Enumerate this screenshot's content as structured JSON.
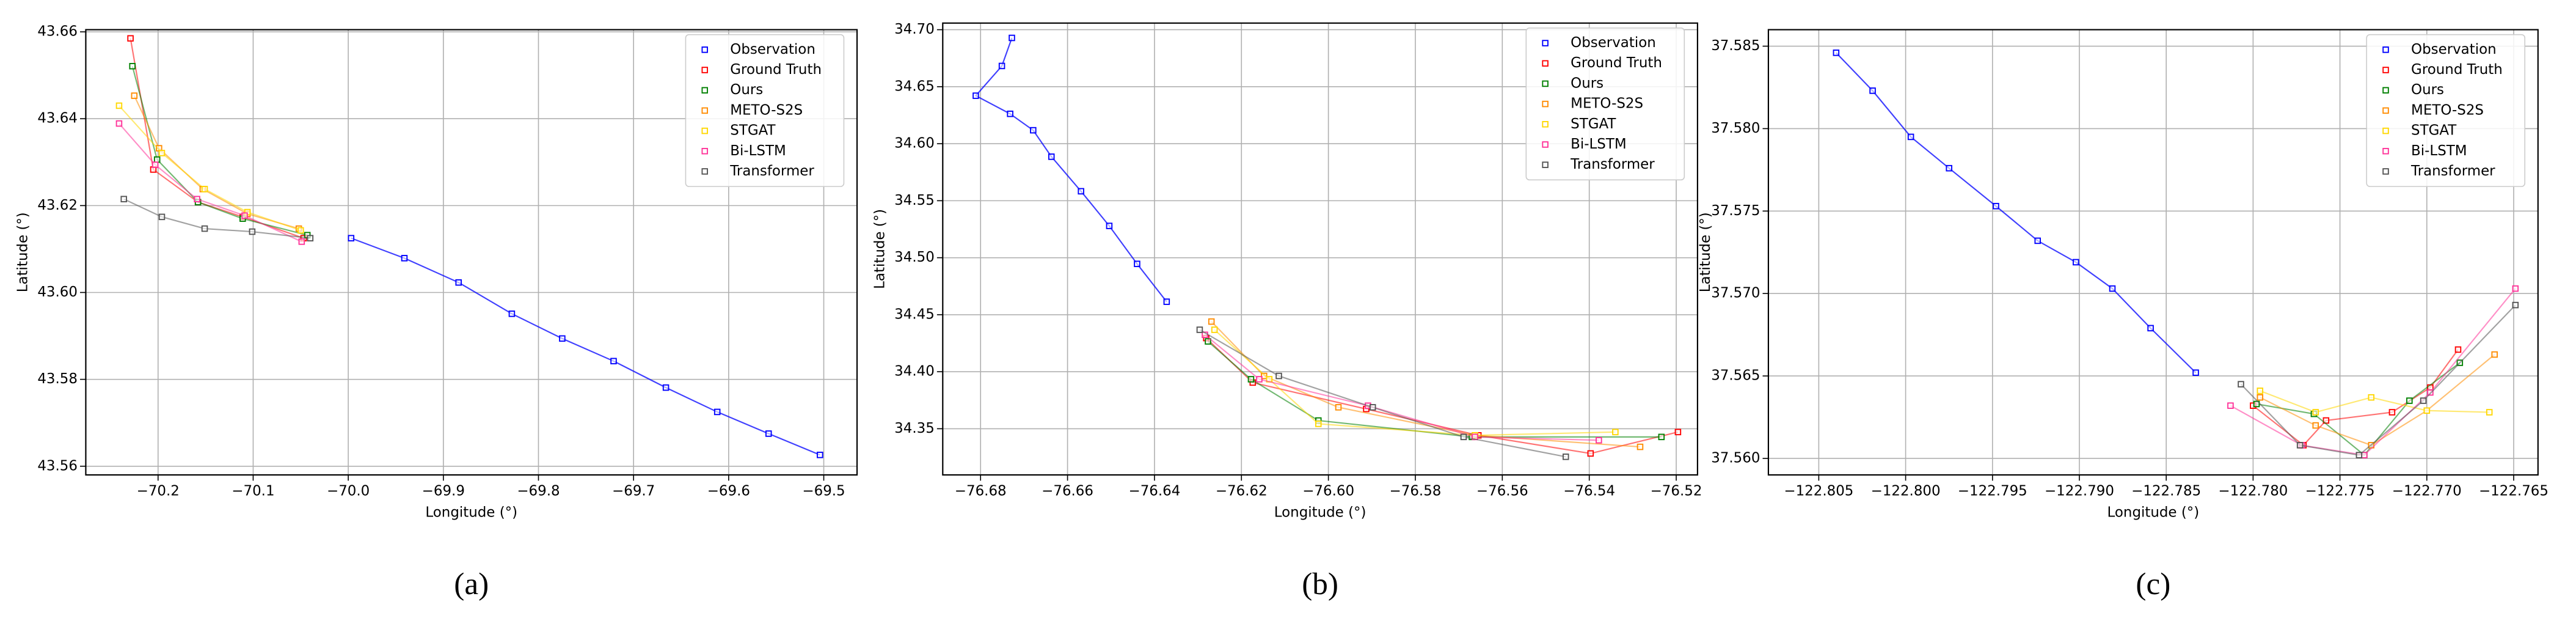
{
  "chart_data": [
    {
      "type": "line",
      "caption": "(a)",
      "xlabel": "Longitude (°)",
      "ylabel": "Latitude (°)",
      "grid": true,
      "legend": "upper right",
      "xlim": [
        -70.276,
        -69.465
      ],
      "ylim": [
        43.558,
        43.6605
      ],
      "xticks": [
        {
          "value": -70.2,
          "label": "−70.2"
        },
        {
          "value": -70.1,
          "label": "−70.1"
        },
        {
          "value": -70.0,
          "label": "−70.0"
        },
        {
          "value": -69.9,
          "label": "−69.9"
        },
        {
          "value": -69.8,
          "label": "−69.8"
        },
        {
          "value": -69.7,
          "label": "−69.7"
        },
        {
          "value": -69.6,
          "label": "−69.6"
        },
        {
          "value": -69.5,
          "label": "−69.5"
        }
      ],
      "yticks": [
        43.56,
        43.58,
        {
          "value": 43.6,
          "label": "43.60"
        },
        43.62,
        43.64,
        43.66
      ],
      "series": [
        {
          "name": "Observation",
          "color": "#0000ff",
          "x": [
            -69.997,
            -69.941,
            -69.884,
            -69.828,
            -69.775,
            -69.721,
            -69.666,
            -69.612,
            -69.558,
            -69.504
          ],
          "values": [
            43.6125,
            43.6079,
            43.6023,
            43.5951,
            43.5894,
            43.5842,
            43.5781,
            43.5725,
            43.5675,
            43.5626
          ]
        },
        {
          "name": "Ground Truth",
          "color": "#ff0000",
          "x": [
            -70.229,
            -70.205,
            -70.158,
            -70.111,
            -70.047
          ],
          "values": [
            43.6585,
            43.6283,
            43.6208,
            43.6174,
            43.6125
          ]
        },
        {
          "name": "Ours",
          "color": "#008000",
          "x": [
            -70.227,
            -70.201,
            -70.158,
            -70.111,
            -70.043
          ],
          "values": [
            43.6521,
            43.6306,
            43.6208,
            43.617,
            43.6132
          ]
        },
        {
          "name": "METO-S2S",
          "color": "#ff8c00",
          "x": [
            -70.225,
            -70.199,
            -70.153,
            -70.106,
            -70.052
          ],
          "values": [
            43.6453,
            43.6332,
            43.6238,
            43.6181,
            43.6147
          ]
        },
        {
          "name": "STGAT",
          "color": "#ffd700",
          "x": [
            -70.241,
            -70.196,
            -70.151,
            -70.106,
            -70.05
          ],
          "values": [
            43.643,
            43.6321,
            43.6238,
            43.6185,
            43.6143
          ]
        },
        {
          "name": "Bi-LSTM",
          "color": "#ff3399",
          "x": [
            -70.241,
            -70.203,
            -70.159,
            -70.109,
            -70.049
          ],
          "values": [
            43.6389,
            43.6294,
            43.6215,
            43.6177,
            43.6117
          ]
        },
        {
          "name": "Transformer",
          "color": "#555555",
          "x": [
            -70.236,
            -70.196,
            -70.151,
            -70.101,
            -70.04
          ],
          "values": [
            43.6215,
            43.6174,
            43.6147,
            43.614,
            43.6125
          ]
        }
      ]
    },
    {
      "type": "line",
      "caption": "(b)",
      "xlabel": "Longitude (°)",
      "ylabel": "Latitude (°)",
      "grid": true,
      "legend": "upper right",
      "xlim": [
        -76.6887,
        -76.5151
      ],
      "ylim": [
        34.3095,
        34.7058
      ],
      "xticks": [
        {
          "value": -76.68,
          "label": "−76.68"
        },
        {
          "value": -76.66,
          "label": "−76.66"
        },
        {
          "value": -76.64,
          "label": "−76.64"
        },
        {
          "value": -76.62,
          "label": "−76.62"
        },
        {
          "value": -76.6,
          "label": "−76.60"
        },
        {
          "value": -76.58,
          "label": "−76.58"
        },
        {
          "value": -76.56,
          "label": "−76.56"
        },
        {
          "value": -76.54,
          "label": "−76.54"
        },
        {
          "value": -76.52,
          "label": "−76.52"
        }
      ],
      "yticks": [
        34.35,
        {
          "value": 34.4,
          "label": "34.40"
        },
        34.45,
        {
          "value": 34.5,
          "label": "34.50"
        },
        34.55,
        {
          "value": 34.6,
          "label": "34.60"
        },
        34.65,
        {
          "value": 34.7,
          "label": "34.70"
        }
      ],
      "series": [
        {
          "name": "Observation",
          "color": "#0000ff",
          "x": [
            -76.6728,
            -76.6751,
            -76.6811,
            -76.6732,
            -76.6679,
            -76.6637,
            -76.6569,
            -76.6504,
            -76.644,
            -76.6372
          ],
          "values": [
            34.6928,
            34.6682,
            34.6421,
            34.6262,
            34.6118,
            34.5886,
            34.5583,
            34.5279,
            34.4946,
            34.4614
          ]
        },
        {
          "name": "Ground Truth",
          "color": "#ff0000",
          "x": [
            -76.6281,
            -76.6174,
            -76.5913,
            -76.5655,
            -76.5397,
            -76.5196
          ],
          "values": [
            34.4295,
            34.3905,
            34.3673,
            34.3442,
            34.3283,
            34.3471
          ]
        },
        {
          "name": "Ours",
          "color": "#008000",
          "x": [
            -76.6277,
            -76.6178,
            -76.6023,
            -76.567,
            -76.5234
          ],
          "values": [
            34.4266,
            34.3934,
            34.3572,
            34.3428,
            34.3428
          ]
        },
        {
          "name": "METO-S2S",
          "color": "#ff8c00",
          "x": [
            -76.6269,
            -76.6148,
            -76.5977,
            -76.5663,
            -76.5283
          ],
          "values": [
            34.444,
            34.3963,
            34.3688,
            34.3442,
            34.3341
          ]
        },
        {
          "name": "STGAT",
          "color": "#ffd700",
          "x": [
            -76.6262,
            -76.6136,
            -76.6023,
            -76.5663,
            -76.534
          ],
          "values": [
            34.4368,
            34.3934,
            34.3543,
            34.3442,
            34.3471
          ]
        },
        {
          "name": "Bi-LSTM",
          "color": "#ff3399",
          "x": [
            -76.6284,
            -76.6159,
            -76.5909,
            -76.5663,
            -76.5378
          ],
          "values": [
            34.4324,
            34.3934,
            34.3702,
            34.3428,
            34.3399
          ]
        },
        {
          "name": "Transformer",
          "color": "#555555",
          "x": [
            -76.6296,
            -76.6114,
            -76.5898,
            -76.5689,
            -76.5454
          ],
          "values": [
            34.4368,
            34.3963,
            34.3688,
            34.3428,
            34.3254
          ]
        }
      ]
    },
    {
      "type": "line",
      "caption": "(c)",
      "xlabel": "Longitude (°)",
      "ylabel": "Latitude (°)",
      "grid": true,
      "legend": "upper right",
      "xlim": [
        -122.8079,
        -122.7636
      ],
      "ylim": [
        37.559,
        37.586
      ],
      "xticks": [
        {
          "value": -122.805,
          "label": "−122.805"
        },
        {
          "value": -122.8,
          "label": "−122.800"
        },
        {
          "value": -122.795,
          "label": "−122.795"
        },
        {
          "value": -122.79,
          "label": "−122.790"
        },
        {
          "value": -122.785,
          "label": "−122.785"
        },
        {
          "value": -122.78,
          "label": "−122.780"
        },
        {
          "value": -122.775,
          "label": "−122.775"
        },
        {
          "value": -122.77,
          "label": "−122.770"
        },
        {
          "value": -122.765,
          "label": "−122.765"
        }
      ],
      "yticks": [
        {
          "value": 37.56,
          "label": "37.560"
        },
        37.565,
        {
          "value": 37.57,
          "label": "37.570"
        },
        37.575,
        {
          "value": 37.58,
          "label": "37.580"
        },
        37.585
      ],
      "series": [
        {
          "name": "Observation",
          "color": "#0000ff",
          "x": [
            -122.804,
            -122.8019,
            -122.7997,
            -122.7975,
            -122.7948,
            -122.7924,
            -122.7902,
            -122.7881,
            -122.7859,
            -122.7833
          ],
          "values": [
            37.5846,
            37.5823,
            37.5795,
            37.5776,
            37.5753,
            37.5732,
            37.5719,
            37.5703,
            37.5679,
            37.5652
          ]
        },
        {
          "name": "Ground Truth",
          "color": "#ff0000",
          "x": [
            -122.78,
            -122.7771,
            -122.7758,
            -122.772,
            -122.7698,
            -122.7682
          ],
          "values": [
            37.5632,
            37.5608,
            37.5623,
            37.5628,
            37.5643,
            37.5666
          ]
        },
        {
          "name": "Ours",
          "color": "#008000",
          "x": [
            -122.7798,
            -122.7765,
            -122.7736,
            -122.771,
            -122.7681
          ],
          "values": [
            37.5633,
            37.5627,
            37.5602,
            37.5635,
            37.5658
          ]
        },
        {
          "name": "METO-S2S",
          "color": "#ff8c00",
          "x": [
            -122.7796,
            -122.7764,
            -122.7732,
            -122.77,
            -122.7661
          ],
          "values": [
            37.5637,
            37.562,
            37.5608,
            37.5629,
            37.5663
          ]
        },
        {
          "name": "STGAT",
          "color": "#ffd700",
          "x": [
            -122.7796,
            -122.7764,
            -122.7732,
            -122.77,
            -122.7664
          ],
          "values": [
            37.5641,
            37.5628,
            37.5637,
            37.5629,
            37.5628
          ]
        },
        {
          "name": "Bi-LSTM",
          "color": "#ff3399",
          "x": [
            -122.7813,
            -122.7772,
            -122.7736,
            -122.7698,
            -122.7649
          ],
          "values": [
            37.5632,
            37.5608,
            37.5602,
            37.564,
            37.5703
          ]
        },
        {
          "name": "Transformer",
          "color": "#555555",
          "x": [
            -122.7807,
            -122.7773,
            -122.7739,
            -122.7702,
            -122.7649
          ],
          "values": [
            37.5645,
            37.5608,
            37.5602,
            37.5635,
            37.5693
          ]
        }
      ]
    }
  ]
}
